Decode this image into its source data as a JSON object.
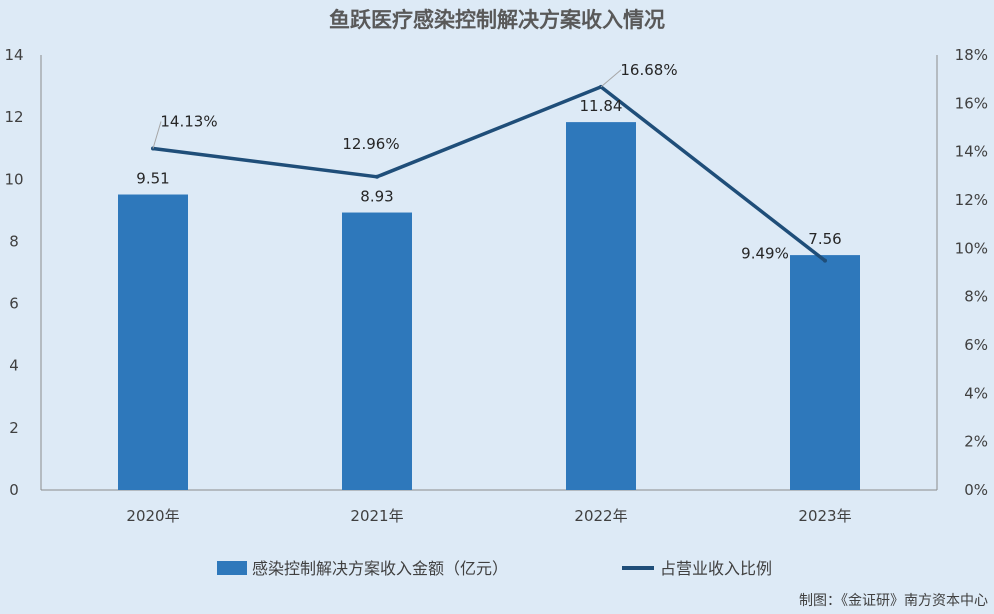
{
  "chart_data": {
    "type": "bar",
    "title": "鱼跃医疗感染控制解决方案收入情况",
    "categories": [
      "2020年",
      "2021年",
      "2022年",
      "2023年"
    ],
    "series": [
      {
        "name": "感染控制解决方案收入金额（亿元）",
        "type": "bar",
        "axis": "left",
        "values": [
          9.51,
          8.93,
          11.84,
          7.56
        ],
        "labels": [
          "9.51",
          "8.93",
          "11.84",
          "7.56"
        ],
        "color": "#2e78bb"
      },
      {
        "name": "占营业收入比例",
        "type": "line",
        "axis": "right",
        "values": [
          14.13,
          12.96,
          16.68,
          9.49
        ],
        "labels": [
          "14.13%",
          "12.96%",
          "16.68%",
          "9.49%"
        ],
        "color": "#1f4e79"
      }
    ],
    "y_left": {
      "min": 0,
      "max": 14,
      "step": 2,
      "ticks": [
        "0",
        "2",
        "4",
        "6",
        "8",
        "10",
        "12",
        "14"
      ]
    },
    "y_right": {
      "min": 0,
      "max": 18,
      "step": 2,
      "ticks": [
        "0%",
        "2%",
        "4%",
        "6%",
        "8%",
        "10%",
        "12%",
        "14%",
        "16%",
        "18%"
      ]
    },
    "grid": false,
    "legend": "bottom"
  },
  "source": "制图：《金证研》南方资本中心"
}
